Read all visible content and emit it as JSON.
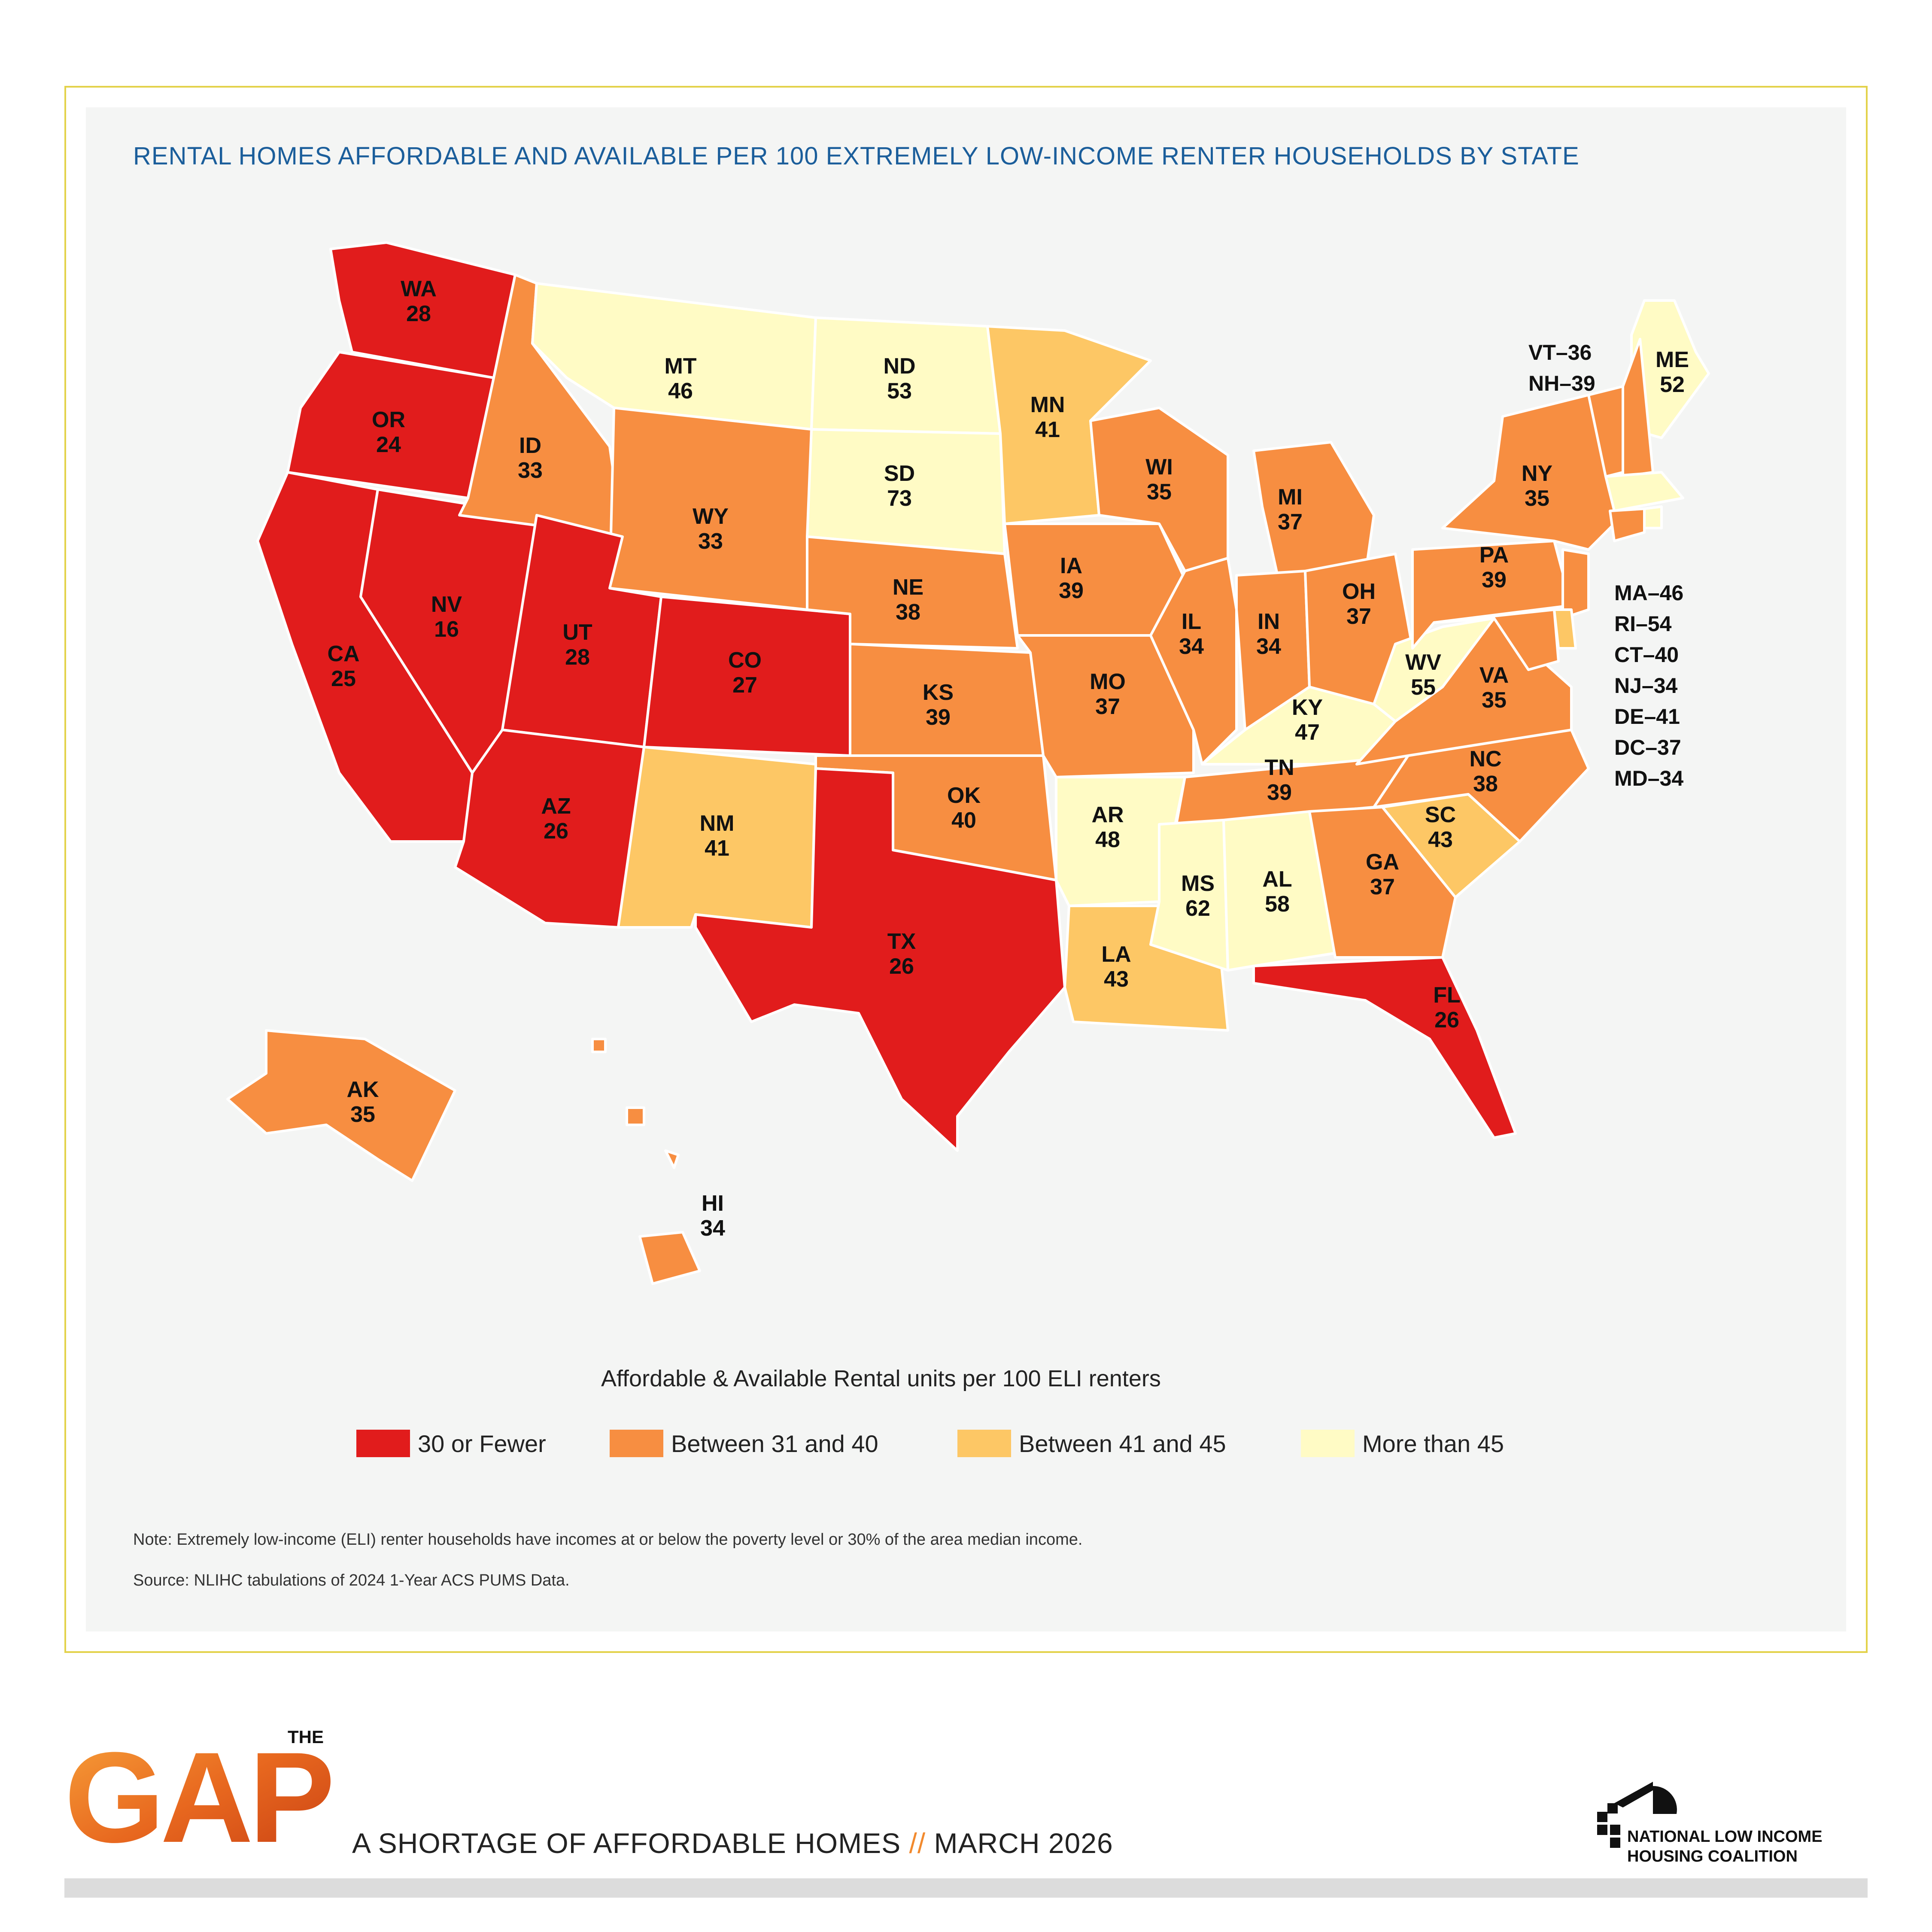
{
  "title": "RENTAL HOMES AFFORDABLE AND AVAILABLE PER 100 EXTREMELY LOW-INCOME RENTER HOUSEHOLDS BY STATE",
  "colors": {
    "red": "#e11c1c",
    "orange": "#f78e41",
    "lightorange": "#fdc765",
    "yellow": "#fffbc5"
  },
  "states": [
    {
      "abbr": "WA",
      "value": "28",
      "cat": "red"
    },
    {
      "abbr": "OR",
      "value": "24",
      "cat": "red"
    },
    {
      "abbr": "CA",
      "value": "25",
      "cat": "red"
    },
    {
      "abbr": "NV",
      "value": "16",
      "cat": "red"
    },
    {
      "abbr": "ID",
      "value": "33",
      "cat": "orange"
    },
    {
      "abbr": "MT",
      "value": "46",
      "cat": "yellow"
    },
    {
      "abbr": "WY",
      "value": "33",
      "cat": "orange"
    },
    {
      "abbr": "UT",
      "value": "28",
      "cat": "red"
    },
    {
      "abbr": "AZ",
      "value": "26",
      "cat": "red"
    },
    {
      "abbr": "CO",
      "value": "27",
      "cat": "red"
    },
    {
      "abbr": "NM",
      "value": "41",
      "cat": "lightorange"
    },
    {
      "abbr": "ND",
      "value": "53",
      "cat": "yellow"
    },
    {
      "abbr": "SD",
      "value": "73",
      "cat": "yellow"
    },
    {
      "abbr": "NE",
      "value": "38",
      "cat": "orange"
    },
    {
      "abbr": "KS",
      "value": "39",
      "cat": "orange"
    },
    {
      "abbr": "OK",
      "value": "40",
      "cat": "orange"
    },
    {
      "abbr": "TX",
      "value": "26",
      "cat": "red"
    },
    {
      "abbr": "MN",
      "value": "41",
      "cat": "lightorange"
    },
    {
      "abbr": "IA",
      "value": "39",
      "cat": "orange"
    },
    {
      "abbr": "MO",
      "value": "37",
      "cat": "orange"
    },
    {
      "abbr": "AR",
      "value": "48",
      "cat": "yellow"
    },
    {
      "abbr": "LA",
      "value": "43",
      "cat": "lightorange"
    },
    {
      "abbr": "WI",
      "value": "35",
      "cat": "orange"
    },
    {
      "abbr": "IL",
      "value": "34",
      "cat": "orange"
    },
    {
      "abbr": "MI",
      "value": "37",
      "cat": "orange"
    },
    {
      "abbr": "IN",
      "value": "34",
      "cat": "orange"
    },
    {
      "abbr": "OH",
      "value": "37",
      "cat": "orange"
    },
    {
      "abbr": "KY",
      "value": "47",
      "cat": "yellow"
    },
    {
      "abbr": "TN",
      "value": "39",
      "cat": "orange"
    },
    {
      "abbr": "MS",
      "value": "62",
      "cat": "yellow"
    },
    {
      "abbr": "AL",
      "value": "58",
      "cat": "yellow"
    },
    {
      "abbr": "GA",
      "value": "37",
      "cat": "orange"
    },
    {
      "abbr": "FL",
      "value": "26",
      "cat": "red"
    },
    {
      "abbr": "SC",
      "value": "43",
      "cat": "lightorange"
    },
    {
      "abbr": "NC",
      "value": "38",
      "cat": "orange"
    },
    {
      "abbr": "VA",
      "value": "35",
      "cat": "orange"
    },
    {
      "abbr": "WV",
      "value": "55",
      "cat": "yellow"
    },
    {
      "abbr": "PA",
      "value": "39",
      "cat": "orange"
    },
    {
      "abbr": "NY",
      "value": "35",
      "cat": "orange"
    },
    {
      "abbr": "ME",
      "value": "52",
      "cat": "yellow"
    },
    {
      "abbr": "AK",
      "value": "35",
      "cat": "orange"
    },
    {
      "abbr": "HI",
      "value": "34",
      "cat": "orange"
    }
  ],
  "small_states_ne": [
    "VT–36",
    "NH–39"
  ],
  "small_states_east": [
    "MA–46",
    "RI–54",
    "CT–40",
    "NJ–34",
    "DE–41",
    "DC–37",
    "MD–34"
  ],
  "small_states_cat": {
    "VT": "orange",
    "NH": "orange",
    "MA": "yellow",
    "RI": "yellow",
    "CT": "orange",
    "NJ": "orange",
    "DE": "lightorange",
    "MD": "orange"
  },
  "legend": {
    "title": "Affordable & Available Rental units per 100 ELI renters",
    "items": [
      {
        "label": "30 or Fewer",
        "color": "#e11c1c"
      },
      {
        "label": "Between 31 and 40",
        "color": "#f78e41"
      },
      {
        "label": "Between 41 and 45",
        "color": "#fdc765"
      },
      {
        "label": "More than 45",
        "color": "#fffbc5"
      }
    ]
  },
  "note": "Note: Extremely low-income (ELI) renter households have incomes at or below the poverty level or 30% of the area median income.",
  "source": "Source: NLIHC tabulations of 2024 1-Year ACS PUMS Data.",
  "footer": {
    "logo_small": "THE",
    "logo_big": "GAP",
    "subtitle_left": "A SHORTAGE OF AFFORDABLE HOMES",
    "subtitle_sep": "//",
    "subtitle_right": "MARCH 2026",
    "org_line1": "NATIONAL LOW INCOME",
    "org_line2": "HOUSING COALITION"
  }
}
